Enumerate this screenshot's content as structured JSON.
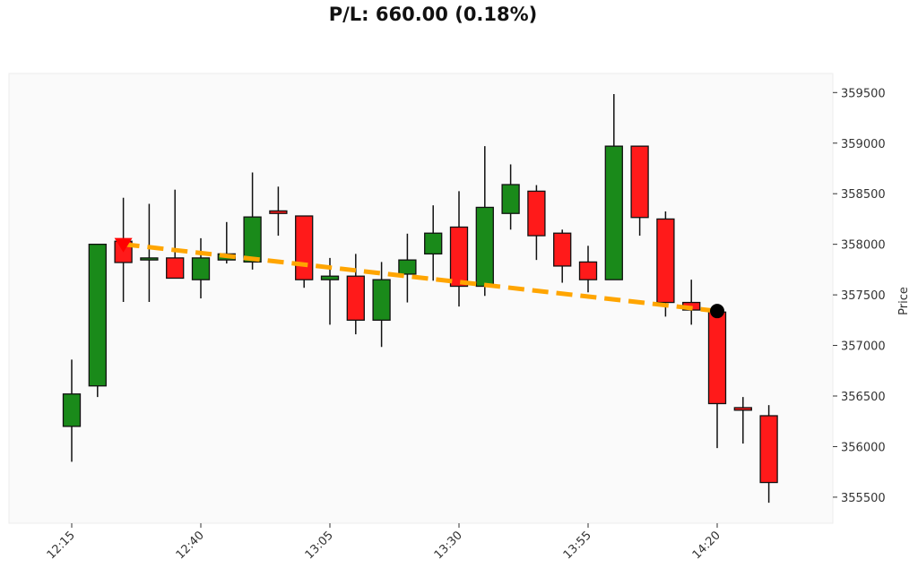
{
  "title": "P/L: 660.00 (0.18%)",
  "chart_data": {
    "type": "candlestick",
    "title": "P/L: 660.00 (0.18%)",
    "xlabel": "",
    "ylabel": "Price",
    "ylim": [
      355300,
      359700
    ],
    "yticks": [
      355500,
      356000,
      356500,
      357000,
      357500,
      358000,
      358500,
      359000,
      359500
    ],
    "xtick_labels": [
      "12:15",
      "12:40",
      "13:05",
      "13:30",
      "13:55",
      "14:20"
    ],
    "xtick_index": [
      0,
      5,
      10,
      15,
      20,
      25
    ],
    "grid": false,
    "colors": {
      "up": "#1a8a1a",
      "down": "#ff1a1a",
      "trade_line": "#ffa500",
      "entry_marker": "#ff0000",
      "exit_marker": "#000000",
      "background": "#fafafa"
    },
    "candles": [
      {
        "time": "12:15",
        "open": 356200,
        "high": 356860,
        "low": 355850,
        "close": 356520
      },
      {
        "time": "12:20",
        "open": 356600,
        "high": 358000,
        "low": 356490,
        "close": 358000
      },
      {
        "time": "12:25",
        "open": 358030,
        "high": 358460,
        "low": 357430,
        "close": 357820
      },
      {
        "time": "12:30",
        "open": 357845,
        "high": 358400,
        "low": 357430,
        "close": 357865
      },
      {
        "time": "12:35",
        "open": 357865,
        "high": 358540,
        "low": 357665,
        "close": 357665
      },
      {
        "time": "12:40",
        "open": 357650,
        "high": 358060,
        "low": 357465,
        "close": 357865
      },
      {
        "time": "12:45",
        "open": 357845,
        "high": 358220,
        "low": 357810,
        "close": 357905
      },
      {
        "time": "12:50",
        "open": 357825,
        "high": 358710,
        "low": 357750,
        "close": 358270
      },
      {
        "time": "12:55",
        "open": 358330,
        "high": 358570,
        "low": 358085,
        "close": 358305
      },
      {
        "time": "13:00",
        "open": 358280,
        "high": 358280,
        "low": 357570,
        "close": 357650
      },
      {
        "time": "13:05",
        "open": 357650,
        "high": 357865,
        "low": 357205,
        "close": 357685
      },
      {
        "time": "13:10",
        "open": 357685,
        "high": 357905,
        "low": 357110,
        "close": 357250
      },
      {
        "time": "13:15",
        "open": 357250,
        "high": 357825,
        "low": 356985,
        "close": 357650
      },
      {
        "time": "13:20",
        "open": 357705,
        "high": 358105,
        "low": 357425,
        "close": 357845
      },
      {
        "time": "13:25",
        "open": 357905,
        "high": 358385,
        "low": 357640,
        "close": 358110
      },
      {
        "time": "13:30",
        "open": 358170,
        "high": 358525,
        "low": 357385,
        "close": 357585
      },
      {
        "time": "13:35",
        "open": 357585,
        "high": 358970,
        "low": 357490,
        "close": 358365
      },
      {
        "time": "13:40",
        "open": 358305,
        "high": 358790,
        "low": 358145,
        "close": 358590
      },
      {
        "time": "13:45",
        "open": 358525,
        "high": 358585,
        "low": 357845,
        "close": 358085
      },
      {
        "time": "13:50",
        "open": 358110,
        "high": 358145,
        "low": 357620,
        "close": 357785
      },
      {
        "time": "13:55",
        "open": 357825,
        "high": 357985,
        "low": 357525,
        "close": 357650
      },
      {
        "time": "14:00",
        "open": 357650,
        "high": 359485,
        "low": 357650,
        "close": 358970
      },
      {
        "time": "14:05",
        "open": 358970,
        "high": 358970,
        "low": 358085,
        "close": 358265
      },
      {
        "time": "14:10",
        "open": 358250,
        "high": 358325,
        "low": 357285,
        "close": 357425
      },
      {
        "time": "14:15",
        "open": 357425,
        "high": 357650,
        "low": 357205,
        "close": 357350
      },
      {
        "time": "14:20",
        "open": 357330,
        "high": 357330,
        "low": 355985,
        "close": 356425
      },
      {
        "time": "14:25",
        "open": 356385,
        "high": 356490,
        "low": 356030,
        "close": 356360
      },
      {
        "time": "14:30",
        "open": 356305,
        "high": 356410,
        "low": 355445,
        "close": 355645
      }
    ],
    "trade": {
      "entry_time": "12:25",
      "entry_price": 358000,
      "exit_time": "14:20",
      "exit_price": 357340,
      "side": "short",
      "pl": 660.0,
      "pl_pct": 0.18
    }
  }
}
